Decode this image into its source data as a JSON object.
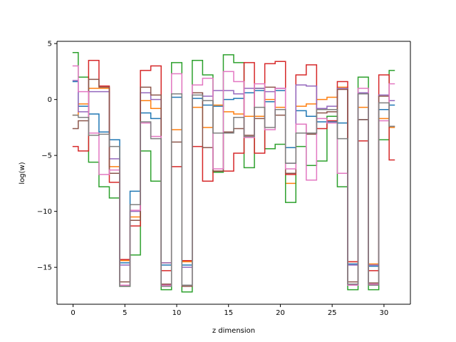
{
  "chart_data": {
    "type": "line",
    "step": "mid",
    "xlabel": "z dimension",
    "ylabel": "log(w)",
    "xlim": [
      -1.55,
      32.55
    ],
    "ylim": [
      -18.3,
      5.2
    ],
    "xticks": [
      0,
      5,
      10,
      15,
      20,
      25,
      30
    ],
    "yticks": [
      5,
      0,
      -5,
      -10,
      -15
    ],
    "ytick_labels": [
      "5",
      "0",
      "−5",
      "−10",
      "−15"
    ],
    "x": [
      0,
      1,
      2,
      3,
      4,
      5,
      6,
      7,
      8,
      9,
      10,
      11,
      12,
      13,
      14,
      15,
      16,
      17,
      18,
      19,
      20,
      21,
      22,
      23,
      24,
      25,
      26,
      27,
      28,
      29,
      30,
      31
    ],
    "series": [
      {
        "color": "#1f77b4",
        "values": [
          1.6,
          -0.6,
          -1.3,
          -2.9,
          -3.6,
          -14.6,
          -8.2,
          -1.2,
          -1.7,
          -14.8,
          0.2,
          -14.8,
          0.1,
          -0.5,
          -0.6,
          0.0,
          0.1,
          0.6,
          0.8,
          -0.2,
          0.8,
          -4.3,
          -1.0,
          -1.5,
          -2.0,
          -2.0,
          -2.1,
          -14.7,
          -1.8,
          -14.9,
          -0.9,
          -0.5
        ]
      },
      {
        "color": "#ff7f0e",
        "values": [
          -1.4,
          -0.4,
          1.0,
          1.0,
          -6.0,
          -14.4,
          -10.5,
          -0.1,
          -0.8,
          -14.6,
          -2.7,
          -14.5,
          -0.7,
          -2.5,
          -0.5,
          -1.1,
          -1.3,
          -1.5,
          -1.5,
          0.0,
          -0.7,
          -7.5,
          -0.6,
          -0.4,
          0.0,
          0.2,
          1.1,
          -14.5,
          -0.7,
          -14.7,
          -1.7,
          -2.5
        ]
      },
      {
        "color": "#2ca02c",
        "values": [
          4.2,
          2.0,
          -5.6,
          -7.8,
          -8.8,
          -16.7,
          -13.9,
          -4.6,
          -7.3,
          -17.0,
          3.3,
          -17.2,
          3.5,
          2.2,
          -6.5,
          4.0,
          3.3,
          -6.1,
          1.0,
          -4.4,
          -4.0,
          -9.2,
          -4.2,
          -5.9,
          -5.5,
          -1.5,
          -7.8,
          -17.0,
          2.0,
          -17.0,
          -3.6,
          2.6
        ]
      },
      {
        "color": "#d62728",
        "values": [
          -4.2,
          -4.6,
          3.5,
          1.2,
          -7.4,
          -14.3,
          -11.3,
          2.6,
          3.0,
          -15.3,
          -6.0,
          -14.4,
          -4.2,
          -7.3,
          -6.4,
          -6.4,
          -4.8,
          3.3,
          -4.8,
          3.2,
          3.4,
          -6.7,
          2.2,
          3.1,
          -2.6,
          -1.9,
          1.6,
          -14.5,
          -3.7,
          -15.3,
          2.2,
          -5.4
        ]
      },
      {
        "color": "#9467bd",
        "values": [
          1.7,
          -1.1,
          0.7,
          0.7,
          -5.3,
          -14.8,
          -10.0,
          0.6,
          0.0,
          -14.6,
          0.5,
          -15.0,
          0.6,
          0.3,
          0.8,
          0.8,
          0.5,
          1.0,
          1.0,
          0.7,
          1.0,
          -5.7,
          1.3,
          1.2,
          -0.8,
          -0.6,
          1.0,
          -14.8,
          0.6,
          -14.8,
          0.4,
          -0.1
        ]
      },
      {
        "color": "#8c564b",
        "values": [
          -2.6,
          -1.9,
          1.8,
          1.1,
          -6.6,
          -16.3,
          -10.8,
          1.1,
          0.4,
          -16.5,
          -3.8,
          -16.7,
          0.6,
          -4.3,
          -6.4,
          -2.9,
          -2.6,
          -3.2,
          -1.7,
          1.1,
          -1.4,
          -6.6,
          -2.2,
          -3.1,
          -1.2,
          -1.1,
          0.9,
          -16.3,
          -1.8,
          -16.4,
          0.3,
          -2.4
        ]
      },
      {
        "color": "#e377c2",
        "values": [
          3.0,
          0.7,
          -3.0,
          -6.7,
          -6.3,
          -16.6,
          -9.9,
          -2.1,
          -3.3,
          -16.6,
          2.3,
          -16.6,
          1.3,
          1.9,
          -6.2,
          2.5,
          1.6,
          -3.4,
          1.4,
          -2.7,
          1.0,
          -6.2,
          -2.2,
          -7.2,
          -1.7,
          -2.1,
          -6.6,
          -16.6,
          1.0,
          -16.5,
          -1.9,
          1.4
        ]
      },
      {
        "color": "#7f7f7f",
        "values": [
          -1.4,
          -1.6,
          -3.2,
          -3.1,
          -4.2,
          -16.7,
          -9.4,
          -2.0,
          -3.5,
          -16.7,
          0.5,
          -16.6,
          0.4,
          -0.1,
          -3.0,
          -3.0,
          -1.6,
          -3.3,
          -0.7,
          -2.5,
          -0.9,
          -5.7,
          -3.0,
          -3.0,
          -0.9,
          -0.9,
          -3.5,
          -16.5,
          0.5,
          -16.6,
          -0.3,
          -2.4
        ]
      }
    ]
  }
}
